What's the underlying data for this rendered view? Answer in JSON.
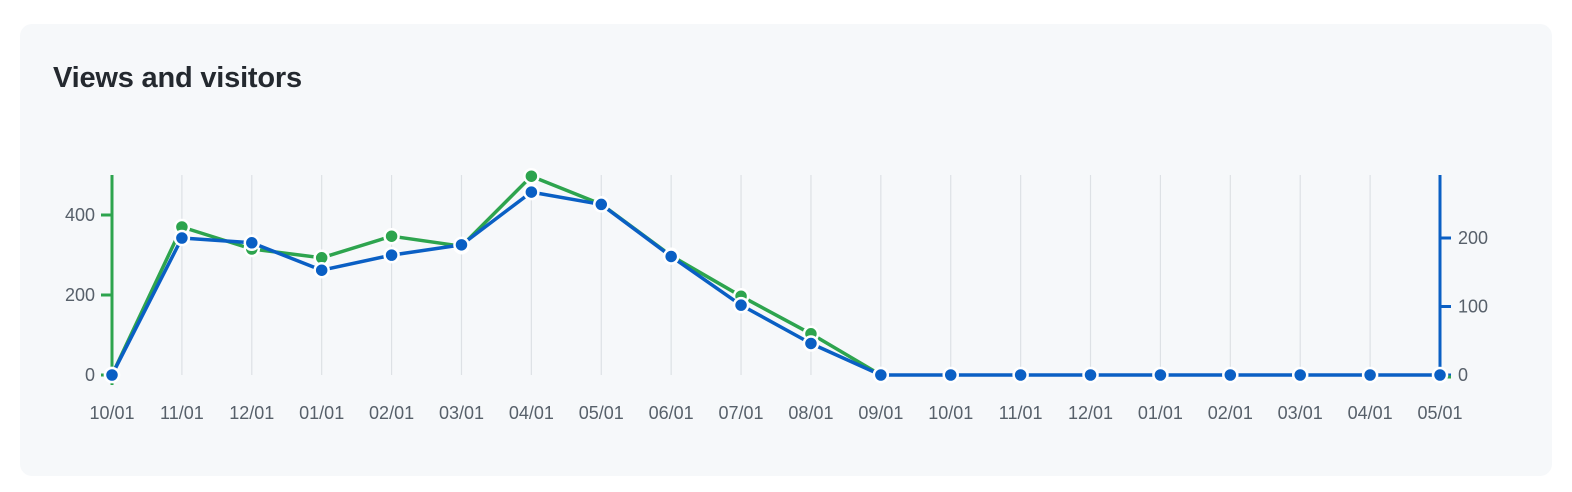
{
  "card": {
    "title": "Views and visitors"
  },
  "colors": {
    "views": "#2da44e",
    "visitors": "#0a5fc4",
    "grid": "#dde1e5",
    "background": "#f6f8fa",
    "tick_text": "#57606a"
  },
  "chart_data": {
    "type": "line",
    "title": "Views and visitors",
    "xlabel": "",
    "ylabel": "",
    "categories": [
      "10/01",
      "11/01",
      "12/01",
      "01/01",
      "02/01",
      "03/01",
      "04/01",
      "05/01",
      "06/01",
      "07/01",
      "08/01",
      "09/01",
      "10/01",
      "11/01",
      "12/01",
      "01/01",
      "02/01",
      "03/01",
      "04/01",
      "05/01"
    ],
    "series": [
      {
        "axis": "left",
        "color": "#2da44e",
        "values": [
          0,
          370,
          315,
          293,
          347,
          322,
          497,
          427,
          298,
          197,
          103,
          0,
          null,
          null,
          null,
          null,
          null,
          null,
          null,
          null
        ]
      },
      {
        "axis": "right",
        "color": "#0a5fc4",
        "values": [
          0,
          200,
          193,
          153,
          175,
          190,
          267,
          249,
          173,
          102,
          46,
          0,
          0,
          0,
          0,
          0,
          0,
          0,
          0,
          0
        ]
      }
    ],
    "y_left": {
      "ticks": [
        0,
        200,
        400
      ],
      "ylim": [
        0,
        500
      ],
      "color": "#2da44e"
    },
    "y_right": {
      "ticks": [
        0,
        100,
        200
      ],
      "ylim": [
        0,
        290
      ],
      "color": "#0a5fc4"
    },
    "grid": {
      "vertical": true,
      "horizontal": false
    },
    "legend": "none"
  }
}
